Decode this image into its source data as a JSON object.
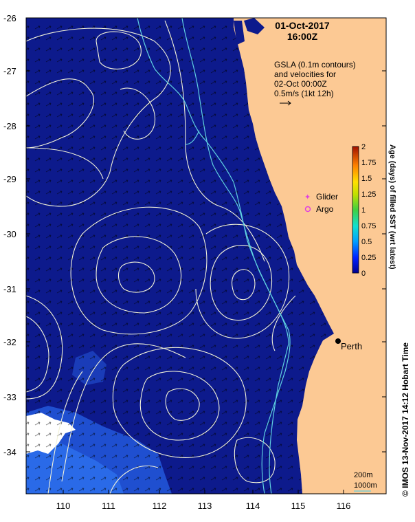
{
  "header": {
    "date": "01-Oct-2017",
    "time": "16:00Z"
  },
  "legend": {
    "line1": "GSLA (0.1m contours)",
    "line2": "and velocities for",
    "line3": "02-Oct 00:00Z",
    "scale_label": "0.5m/s (1kt 12h)",
    "glider": "Glider",
    "argo": "Argo"
  },
  "colorbar": {
    "title": "Age (days) of filled SST (wrt latest)",
    "ticks": [
      "2",
      "1.75",
      "1.5",
      "1.25",
      "1",
      "0.75",
      "0.5",
      "0.25",
      "0"
    ]
  },
  "axes": {
    "y_labels": [
      "-26",
      "-27",
      "-28",
      "-29",
      "-30",
      "-31",
      "-32",
      "-33",
      "-34"
    ],
    "x_labels": [
      "110",
      "111",
      "112",
      "113",
      "114",
      "115",
      "116"
    ]
  },
  "places": {
    "perth": "Perth"
  },
  "depth_legend": {
    "d200": "200m",
    "d1000": "1000m"
  },
  "credit": "© IMOS 13-Nov-2017 14:12 Hobart Time",
  "colors": {
    "ocean": "#0d1a8c",
    "land": "#fcc994",
    "contour": "#f2f2d8",
    "isobath": "#5fd0e0",
    "glider": "#e040e0"
  }
}
